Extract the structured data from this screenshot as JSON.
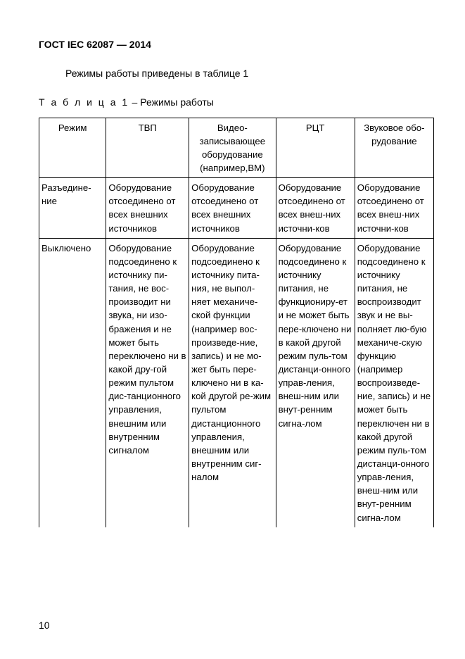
{
  "doc": {
    "header": "ГОСТ IEC 62087 — 2014",
    "intro": "Режимы работы приведены в таблице 1",
    "caption_prefix": "Т а б л и ц а   1",
    "caption_rest": "  – Режимы работы",
    "page_number": "10"
  },
  "table": {
    "border_color": "#000000",
    "background_color": "#ffffff",
    "text_color": "#000000",
    "col_widths_pct": [
      17,
      21,
      22,
      20,
      20
    ],
    "font_size_pt": 10,
    "header_font_size_pt": 10,
    "columns": [
      "Режим",
      "ТВП",
      "Видео-\nзаписывающее\nоборудование\n(например,ВМ)",
      "РЦТ",
      "Звуковое обо-\nрудование"
    ],
    "rows": [
      {
        "c1": "Разъедине-\nние",
        "c2": "Оборудование отсоединено от всех внешних источников",
        "c3": "Оборудование отсоединено от всех внешних источников",
        "c4": "Оборудование отсоединено от всех внеш-них источни-ков",
        "c5": "Оборудование отсоединено от всех внеш-них источни-ков"
      },
      {
        "c1": "Выключено",
        "c2": "Оборудование подсоединено к источнику пи-тания, не вос-производит ни звука, ни изо-бражения и не может быть переключено ни в какой дру-гой режим пультом дис-танционного управления, внешним или внутренним сигналом",
        "c3": "Оборудование подсоединено к источнику пита-ния, не выпол-няет механиче-ской функции (например вос-произведе-ние, запись) и не мо-жет быть пере-ключено ни в ка-кой другой ре-жим пультом дистанционного управления, внешним или внутренним сиг-налом",
        "c4": "Оборудование подсоединено к источнику питания, не функциониру-ет и не может быть пере-ключено  ни в какой другой режим пуль-том дистанци-онного управ-ления, внеш-ним или внут-ренним сигна-лом",
        "c5": "Оборудование подсоединено к источнику питания, не воспроизводит звук и не вы-полняет лю-бую механиче-скую функцию (например воспроизведе-ние, запись) и не может быть переключен ни в какой другой режим пуль-том дистанци-онного управ-ления, внеш-ним или внут-ренним сигна-лом"
      }
    ]
  }
}
